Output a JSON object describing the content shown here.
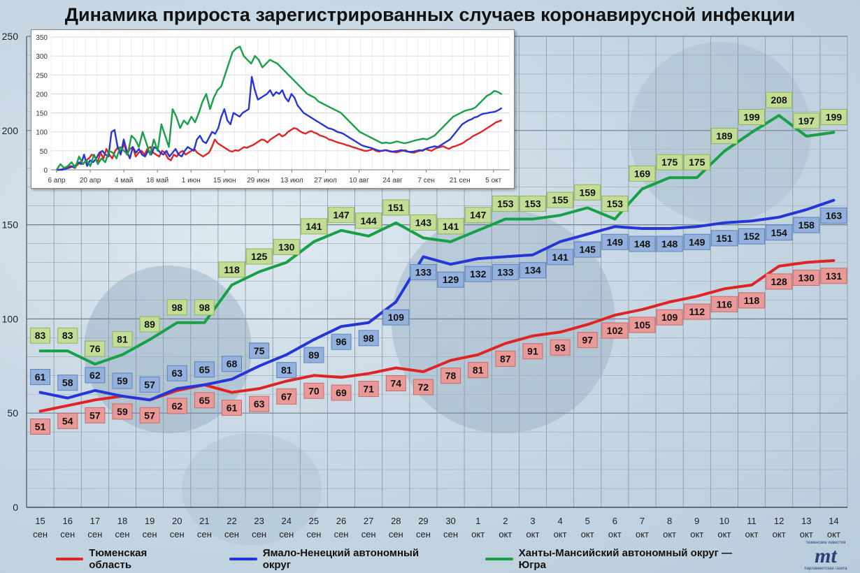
{
  "title": "Динамика прироста зарегистрированных случаев коронавирусной инфекции",
  "colors": {
    "series_1": "#e02424",
    "series_2": "#2436d8",
    "series_3": "#17a045"
  },
  "legend": [
    {
      "name": "Тюменская область",
      "color": "#e02424"
    },
    {
      "name": "Ямало-Ненецкий автономный округ",
      "color": "#2436d8"
    },
    {
      "name": "Ханты-Мансийский автономный округ — Югра",
      "color": "#17a045"
    }
  ],
  "logo": {
    "mark": "mt",
    "top_text": "тюменские известия",
    "bottom_text": "парламентская газета"
  },
  "chart_data": [
    {
      "type": "line",
      "title": "Динамика прироста зарегистрированных случаев коронавирусной инфекции",
      "categories": [
        "15 сен",
        "16 сен",
        "17 сен",
        "18 сен",
        "19 сен",
        "20 сен",
        "21 сен",
        "22 сен",
        "23 сен",
        "24 сен",
        "25 сен",
        "26 сен",
        "27 сен",
        "28 сен",
        "29 сен",
        "30 сен",
        "1 окт",
        "2 окт",
        "3 окт",
        "4 окт",
        "5 окт",
        "6 окт",
        "7 окт",
        "8 окт",
        "9 окт",
        "10 окт",
        "11 окт",
        "12 окт",
        "13 окт",
        "14 окт"
      ],
      "series": [
        {
          "name": "Тюменская область",
          "color": "#e02424",
          "values": [
            51,
            54,
            57,
            59,
            57,
            62,
            65,
            61,
            63,
            67,
            70,
            69,
            71,
            74,
            72,
            78,
            81,
            87,
            91,
            93,
            97,
            102,
            105,
            109,
            112,
            116,
            118,
            128,
            130,
            131
          ]
        },
        {
          "name": "Ямало-Ненецкий автономный округ",
          "color": "#2436d8",
          "values": [
            61,
            58,
            62,
            59,
            57,
            63,
            65,
            68,
            75,
            81,
            89,
            96,
            98,
            109,
            133,
            129,
            132,
            133,
            134,
            141,
            145,
            149,
            148,
            148,
            149,
            151,
            152,
            154,
            158,
            163
          ]
        },
        {
          "name": "Ханты-Мансийский автономный округ — Югра",
          "color": "#17a045",
          "values": [
            83,
            83,
            76,
            81,
            89,
            98,
            98,
            118,
            125,
            130,
            141,
            147,
            144,
            151,
            143,
            141,
            147,
            153,
            153,
            155,
            159,
            153,
            169,
            175,
            175,
            189,
            199,
            208,
            197,
            199
          ]
        }
      ],
      "ylim": [
        0,
        250
      ],
      "yticks": [
        0,
        50,
        100,
        150,
        200,
        250
      ],
      "grid": true
    },
    {
      "type": "line",
      "ylim": [
        0,
        350
      ],
      "yticks": [
        0,
        50,
        100,
        150,
        200,
        250,
        300,
        350
      ],
      "xticks": [
        "6 апр",
        "20 апр",
        "4 май",
        "18 май",
        "1 июн",
        "15 июн",
        "29 июн",
        "13 июл",
        "27 июл",
        "10 авг",
        "24 авг",
        "7 сен",
        "21 сен",
        "5 окт"
      ],
      "grid": true,
      "series": [
        {
          "name": "Тюменская область",
          "color": "#e02424",
          "values": [
            0,
            0,
            2,
            5,
            8,
            10,
            5,
            12,
            20,
            15,
            25,
            30,
            40,
            35,
            20,
            45,
            30,
            55,
            40,
            30,
            50,
            60,
            45,
            70,
            40,
            55,
            60,
            35,
            45,
            50,
            40,
            55,
            60,
            45,
            40,
            35,
            50,
            45,
            30,
            25,
            40,
            35,
            45,
            50,
            40,
            45,
            50,
            55,
            45,
            40,
            35,
            40,
            45,
            60,
            80,
            70,
            65,
            60,
            55,
            50,
            48,
            52,
            50,
            55,
            60,
            58,
            62,
            65,
            70,
            75,
            80,
            78,
            72,
            80,
            85,
            90,
            95,
            88,
            92,
            100,
            105,
            110,
            108,
            102,
            98,
            95,
            100,
            102,
            98,
            95,
            90,
            88,
            85,
            80,
            78,
            75,
            72,
            70,
            68,
            65,
            63,
            60,
            58,
            55,
            53,
            50,
            50,
            52,
            55,
            50,
            48,
            50,
            52,
            50,
            48,
            47,
            46,
            48,
            50,
            52,
            48,
            46,
            45,
            48,
            50,
            52,
            55,
            52,
            50,
            55,
            58,
            60,
            62,
            58,
            55,
            60,
            62,
            65,
            68,
            72,
            78,
            82,
            88,
            92,
            96,
            100,
            105,
            110,
            115,
            120,
            125,
            128,
            131
          ]
        },
        {
          "name": "Ямало-Ненецкий автономный округ",
          "color": "#2436d8",
          "values": [
            0,
            0,
            0,
            3,
            5,
            8,
            10,
            20,
            15,
            40,
            10,
            25,
            20,
            30,
            45,
            50,
            40,
            35,
            100,
            105,
            60,
            40,
            80,
            50,
            30,
            60,
            45,
            55,
            40,
            35,
            50,
            40,
            60,
            55,
            45,
            40,
            50,
            35,
            45,
            55,
            40,
            35,
            50,
            60,
            55,
            50,
            80,
            90,
            75,
            70,
            85,
            100,
            95,
            110,
            140,
            160,
            130,
            120,
            150,
            145,
            140,
            150,
            155,
            160,
            245,
            210,
            185,
            190,
            195,
            200,
            210,
            195,
            205,
            200,
            210,
            190,
            180,
            200,
            190,
            170,
            160,
            150,
            145,
            140,
            135,
            130,
            125,
            120,
            115,
            110,
            108,
            105,
            100,
            98,
            95,
            90,
            85,
            80,
            75,
            70,
            65,
            62,
            60,
            58,
            55,
            52,
            50,
            50,
            52,
            50,
            48,
            49,
            50,
            52,
            50,
            48,
            47,
            48,
            50,
            52,
            50,
            55,
            58,
            60,
            62,
            60,
            65,
            70,
            75,
            80,
            90,
            100,
            110,
            120,
            125,
            130,
            133,
            138,
            140,
            145,
            148,
            149,
            151,
            152,
            154,
            158,
            163
          ]
        },
        {
          "name": "Ханты-Мансийский автономный округ — Югра",
          "color": "#17a045",
          "values": [
            0,
            15,
            5,
            10,
            20,
            5,
            35,
            15,
            25,
            10,
            40,
            15,
            30,
            20,
            50,
            45,
            30,
            60,
            50,
            40,
            90,
            80,
            60,
            100,
            70,
            40,
            80,
            50,
            120,
            90,
            60,
            160,
            140,
            110,
            130,
            120,
            140,
            125,
            150,
            180,
            200,
            160,
            190,
            210,
            220,
            250,
            280,
            310,
            320,
            325,
            300,
            290,
            280,
            300,
            290,
            270,
            280,
            290,
            285,
            280,
            270,
            260,
            250,
            240,
            230,
            220,
            210,
            200,
            195,
            190,
            180,
            175,
            170,
            165,
            160,
            155,
            150,
            140,
            130,
            120,
            110,
            100,
            95,
            90,
            85,
            80,
            75,
            70,
            72,
            70,
            72,
            75,
            72,
            70,
            72,
            75,
            78,
            80,
            82,
            80,
            85,
            90,
            100,
            110,
            120,
            130,
            140,
            145,
            150,
            155,
            158,
            160,
            165,
            175,
            185,
            195,
            200,
            208,
            205,
            199
          ]
        }
      ]
    }
  ]
}
